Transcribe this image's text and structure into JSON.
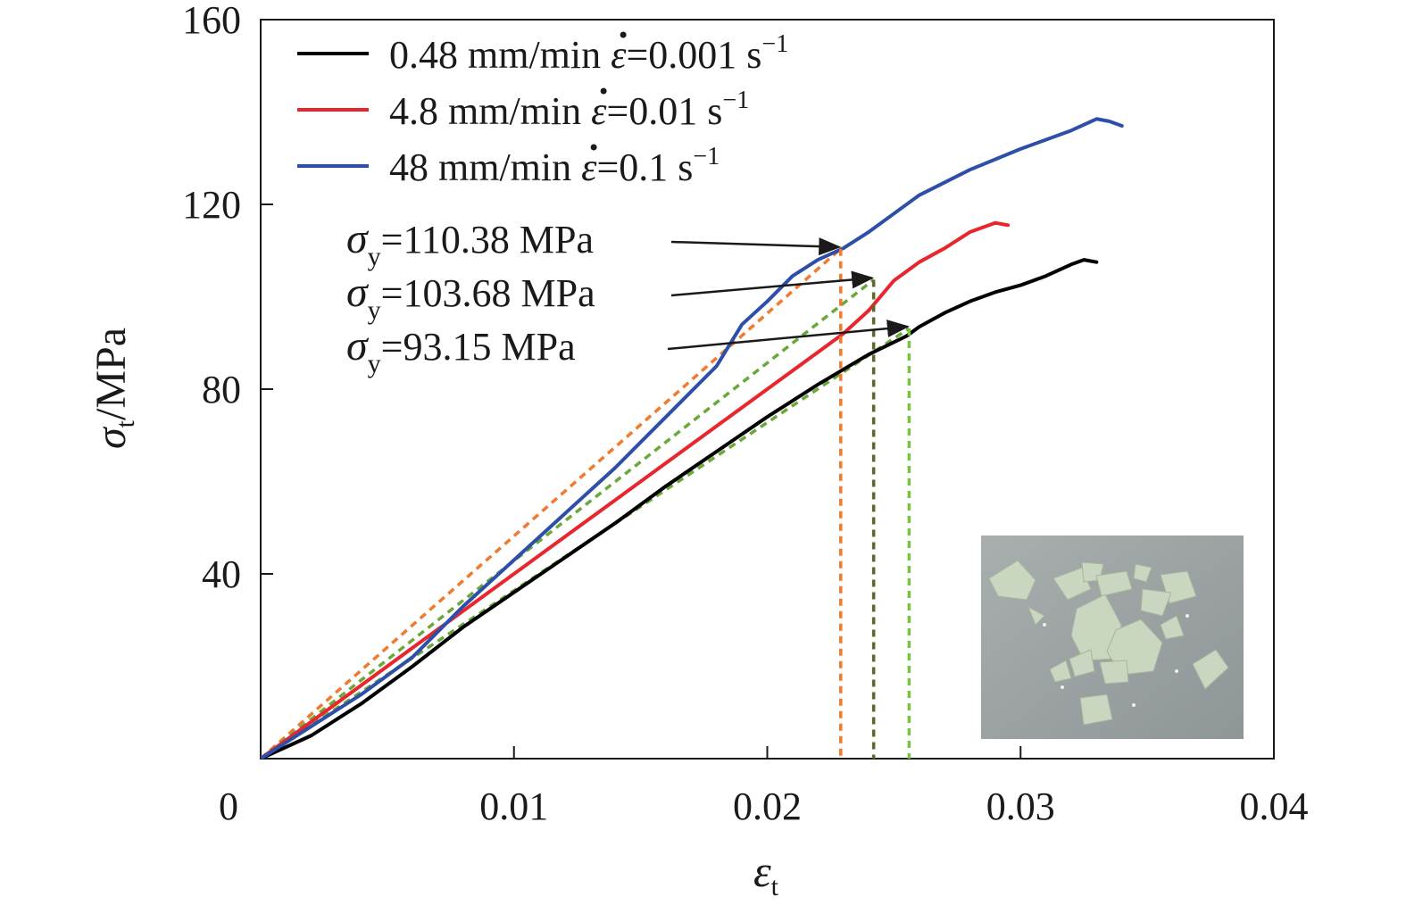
{
  "chart_data": {
    "type": "line",
    "xlabel_symbol": "ε",
    "xlabel_sub": "t",
    "ylabel_symbol": "σ",
    "ylabel_sub": "t",
    "ylabel_unit": "/MPa",
    "xlim": [
      0,
      0.04
    ],
    "ylim": [
      0,
      160
    ],
    "xticks": [
      {
        "value": 0,
        "label": "0"
      },
      {
        "value": 0.01,
        "label": "0.01"
      },
      {
        "value": 0.02,
        "label": "0.02"
      },
      {
        "value": 0.03,
        "label": "0.03"
      },
      {
        "value": 0.04,
        "label": "0.04"
      }
    ],
    "yticks": [
      {
        "value": 40,
        "label": "40"
      },
      {
        "value": 80,
        "label": "80"
      },
      {
        "value": 120,
        "label": "120"
      },
      {
        "value": 160,
        "label": "160"
      }
    ],
    "grid": false,
    "legend_position": "top-left",
    "series": [
      {
        "name_prefix": "0.48 mm/min ",
        "name_symbol": "ε",
        "name_value": "=0.001 s",
        "name_exp": "−1",
        "color": "#000000",
        "x": [
          0,
          0.002,
          0.004,
          0.006,
          0.008,
          0.01,
          0.012,
          0.014,
          0.016,
          0.018,
          0.02,
          0.022,
          0.024,
          0.0255,
          0.026,
          0.027,
          0.028,
          0.029,
          0.03,
          0.031,
          0.032,
          0.0325,
          0.033
        ],
        "y": [
          0,
          5,
          12,
          20,
          28.5,
          36,
          43.5,
          51,
          59,
          66.5,
          74,
          81,
          87.5,
          91.5,
          93.5,
          96.5,
          99,
          101,
          102.5,
          104.5,
          107,
          108,
          107.5
        ]
      },
      {
        "name_prefix": "4.8 mm/min ",
        "name_symbol": "ε",
        "name_value": "=0.01 s",
        "name_exp": "−1",
        "color": "#e8262d",
        "x": [
          0,
          0.002,
          0.004,
          0.006,
          0.008,
          0.01,
          0.012,
          0.014,
          0.016,
          0.018,
          0.02,
          0.022,
          0.023,
          0.024,
          0.025,
          0.026,
          0.027,
          0.028,
          0.029,
          0.0295
        ],
        "y": [
          0,
          8,
          16,
          24,
          32,
          40,
          48,
          56,
          64,
          72,
          80,
          88,
          92,
          97,
          103.5,
          107.5,
          110.5,
          114,
          116,
          115.5
        ]
      },
      {
        "name_prefix": "48 mm/min ",
        "name_symbol": "ε",
        "name_value": "=0.1 s",
        "name_exp": "−1",
        "color": "#2e4fa8",
        "x": [
          0,
          0.002,
          0.004,
          0.006,
          0.008,
          0.01,
          0.012,
          0.014,
          0.016,
          0.018,
          0.019,
          0.02,
          0.021,
          0.022,
          0.023,
          0.024,
          0.026,
          0.028,
          0.03,
          0.032,
          0.033,
          0.0335,
          0.034
        ],
        "y": [
          0,
          7,
          14,
          22,
          33,
          43,
          53,
          63,
          74,
          85,
          94,
          99,
          104.5,
          108,
          110.5,
          114,
          122,
          127.5,
          132,
          136,
          138.5,
          138,
          137
        ]
      }
    ],
    "fit_lines": [
      {
        "color": "#f07a2e",
        "x": [
          0,
          0.0229
        ],
        "y": [
          0,
          110.38
        ]
      },
      {
        "color": "#6aa83a",
        "x": [
          0,
          0.0242
        ],
        "y": [
          0,
          103.68
        ]
      },
      {
        "color": "#6aa83a",
        "x": [
          0,
          0.0256
        ],
        "y": [
          0,
          93.15
        ]
      }
    ],
    "yield_markers": [
      {
        "color": "#f07a2e",
        "x": 0.0229,
        "y": 110.38
      },
      {
        "color": "#5a6a2a",
        "x": 0.0242,
        "y": 103.68
      },
      {
        "color": "#7ac242",
        "x": 0.0256,
        "y": 93.15
      }
    ],
    "annotations": [
      {
        "symbol": "σ",
        "sub": "y",
        "text": "=110.38 MPa",
        "target_x": 0.0229,
        "target_y": 110.38
      },
      {
        "symbol": "σ",
        "sub": "y",
        "text": "=103.68 MPa",
        "target_x": 0.0242,
        "target_y": 103.68
      },
      {
        "symbol": "σ",
        "sub": "y",
        "text": "=93.15 MPa",
        "target_x": 0.0256,
        "target_y": 93.15
      }
    ],
    "inset_image": "photo of fractured pale green specimen fragments on grey surface"
  }
}
